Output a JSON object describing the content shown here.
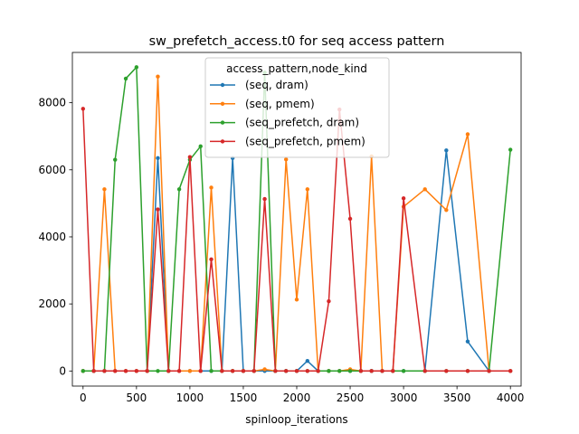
{
  "chart_data": {
    "type": "line",
    "title": "sw_prefetch_access.t0 for seq access pattern",
    "xlabel": "spinloop_iterations",
    "ylabel": "",
    "xlim": [
      -100,
      4100
    ],
    "ylim": [
      -450,
      9500
    ],
    "x_ticks": [
      0,
      500,
      1000,
      1500,
      2000,
      2500,
      3000,
      3500,
      4000
    ],
    "y_ticks": [
      0,
      2000,
      4000,
      6000,
      8000
    ],
    "legend": {
      "title": "access_pattern,node_kind",
      "placement": "upper center"
    },
    "series": [
      {
        "name": "(seq, dram)",
        "color": "#1f77b4",
        "x": [
          0,
          100,
          200,
          300,
          400,
          500,
          600,
          700,
          800,
          900,
          1000,
          1100,
          1200,
          1300,
          1400,
          1500,
          1600,
          1700,
          1800,
          1900,
          2000,
          2100,
          2200,
          2300,
          2400,
          2500,
          2600,
          2700,
          2800,
          2900,
          3000,
          3200,
          3400,
          3600,
          3800,
          4000
        ],
        "y": [
          0,
          0,
          0,
          0,
          0,
          0,
          0,
          6350,
          0,
          0,
          0,
          0,
          0,
          0,
          6350,
          0,
          0,
          0,
          0,
          0,
          0,
          300,
          0,
          0,
          0,
          0,
          0,
          0,
          0,
          0,
          0,
          0,
          6580,
          880,
          0,
          0
        ]
      },
      {
        "name": "(seq, pmem)",
        "color": "#ff7f0e",
        "x": [
          0,
          100,
          200,
          300,
          400,
          500,
          600,
          700,
          800,
          900,
          1000,
          1100,
          1200,
          1300,
          1400,
          1500,
          1600,
          1700,
          1800,
          1900,
          2000,
          2100,
          2200,
          2300,
          2400,
          2500,
          2600,
          2700,
          2800,
          2900,
          3000,
          3200,
          3400,
          3600,
          3800,
          4000
        ],
        "y": [
          0,
          0,
          5420,
          0,
          0,
          0,
          0,
          8780,
          0,
          0,
          0,
          0,
          5470,
          0,
          0,
          0,
          0,
          50,
          0,
          6310,
          2130,
          5420,
          0,
          0,
          0,
          50,
          0,
          6400,
          0,
          0,
          4900,
          5420,
          4800,
          7060,
          0,
          0
        ]
      },
      {
        "name": "(seq_prefetch, dram)",
        "color": "#2ca02c",
        "x": [
          0,
          100,
          200,
          300,
          400,
          500,
          600,
          700,
          800,
          900,
          1000,
          1100,
          1200,
          1300,
          1400,
          1500,
          1600,
          1700,
          1800,
          1900,
          2000,
          2100,
          2200,
          2300,
          2400,
          2500,
          2600,
          2700,
          2800,
          2900,
          3000,
          3200,
          3400,
          3600,
          3800,
          4000
        ],
        "y": [
          0,
          0,
          0,
          6300,
          8720,
          9060,
          0,
          0,
          0,
          5420,
          6300,
          6700,
          0,
          0,
          0,
          0,
          0,
          8900,
          0,
          0,
          0,
          0,
          0,
          0,
          0,
          0,
          0,
          0,
          0,
          0,
          0,
          0,
          0,
          0,
          0,
          6600
        ]
      },
      {
        "name": "(seq_prefetch, pmem)",
        "color": "#d62728",
        "x": [
          0,
          100,
          200,
          300,
          400,
          500,
          600,
          700,
          800,
          900,
          1000,
          1100,
          1200,
          1300,
          1400,
          1500,
          1600,
          1700,
          1800,
          1900,
          2000,
          2100,
          2200,
          2300,
          2400,
          2500,
          2600,
          2700,
          2800,
          2900,
          3000,
          3200,
          3400,
          3600,
          3800,
          4000
        ],
        "y": [
          7820,
          0,
          0,
          0,
          0,
          0,
          0,
          4820,
          0,
          0,
          6380,
          0,
          3330,
          0,
          0,
          0,
          0,
          5130,
          0,
          0,
          0,
          0,
          0,
          2080,
          7800,
          4540,
          0,
          0,
          0,
          0,
          5150,
          0,
          0,
          0,
          0,
          0
        ]
      }
    ]
  }
}
